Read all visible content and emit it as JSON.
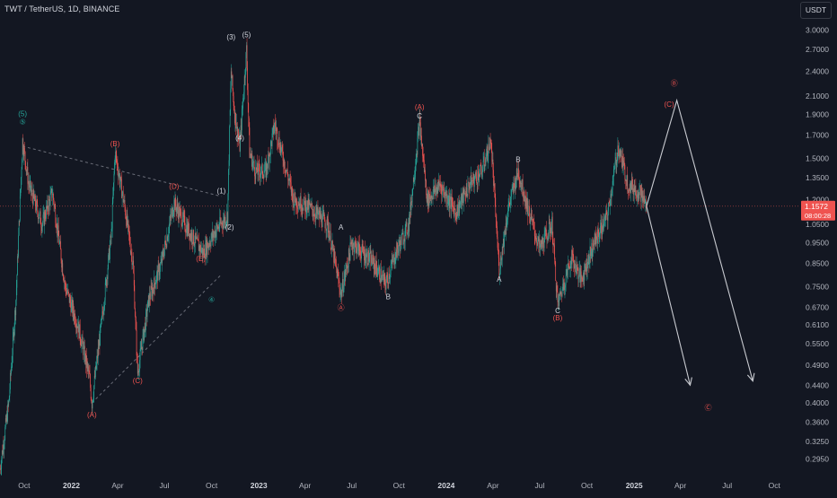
{
  "header": {
    "symbol": "TWT / TetherUS, 1D, BINANCE",
    "currency": "USDT"
  },
  "price_badge": {
    "price": "1.1572",
    "countdown": "08:00:28"
  },
  "colors": {
    "background": "#131722",
    "up": "#26a69a",
    "down": "#ef5350",
    "white_label": "#d1d4dc",
    "projection": "#c8cad0",
    "price_line": "#ef5350"
  },
  "chart_data": {
    "type": "candlestick",
    "y_scale": "log",
    "ylim": [
      0.27,
      3.2
    ],
    "xlim": [
      "2021-08-15",
      "2025-11-01"
    ],
    "y_ticks": [
      "3.0000",
      "2.7000",
      "2.4000",
      "2.1000",
      "1.9000",
      "1.7000",
      "1.5000",
      "1.3500",
      "1.2000",
      "1.0500",
      "0.9500",
      "0.8500",
      "0.7500",
      "0.6700",
      "0.6100",
      "0.5500",
      "0.4900",
      "0.4400",
      "0.4000",
      "0.3600",
      "0.3250",
      "0.2950"
    ],
    "x_ticks": [
      {
        "label": "Oct",
        "date": "2021-10-01",
        "bold": false
      },
      {
        "label": "2022",
        "date": "2022-01-01",
        "bold": true
      },
      {
        "label": "Apr",
        "date": "2022-04-01",
        "bold": false
      },
      {
        "label": "Jul",
        "date": "2022-07-01",
        "bold": false
      },
      {
        "label": "Oct",
        "date": "2022-10-01",
        "bold": false
      },
      {
        "label": "2023",
        "date": "2023-01-01",
        "bold": true
      },
      {
        "label": "Apr",
        "date": "2023-04-01",
        "bold": false
      },
      {
        "label": "Jul",
        "date": "2023-07-01",
        "bold": false
      },
      {
        "label": "Oct",
        "date": "2023-10-01",
        "bold": false
      },
      {
        "label": "2024",
        "date": "2024-01-01",
        "bold": true
      },
      {
        "label": "Apr",
        "date": "2024-04-01",
        "bold": false
      },
      {
        "label": "Jul",
        "date": "2024-07-01",
        "bold": false
      },
      {
        "label": "Oct",
        "date": "2024-10-01",
        "bold": false
      },
      {
        "label": "2025",
        "date": "2025-01-01",
        "bold": true
      },
      {
        "label": "Apr",
        "date": "2025-04-01",
        "bold": false
      },
      {
        "label": "Jul",
        "date": "2025-07-01",
        "bold": false
      },
      {
        "label": "Oct",
        "date": "2025-10-01",
        "bold": false
      }
    ],
    "last_price": 1.1572,
    "price_path": [
      [
        "2021-08-15",
        0.28
      ],
      [
        "2021-09-01",
        0.4
      ],
      [
        "2021-09-15",
        0.7
      ],
      [
        "2021-09-28",
        1.65
      ],
      [
        "2021-10-10",
        1.3
      ],
      [
        "2021-11-05",
        1.05
      ],
      [
        "2021-11-25",
        1.25
      ],
      [
        "2021-12-20",
        0.75
      ],
      [
        "2022-01-15",
        0.6
      ],
      [
        "2022-02-05",
        0.46
      ],
      [
        "2022-02-10",
        0.4
      ],
      [
        "2022-03-01",
        0.62
      ],
      [
        "2022-03-20",
        1.0
      ],
      [
        "2022-03-27",
        1.55
      ],
      [
        "2022-04-15",
        1.15
      ],
      [
        "2022-05-01",
        0.85
      ],
      [
        "2022-05-10",
        0.47
      ],
      [
        "2022-06-01",
        0.7
      ],
      [
        "2022-06-25",
        0.85
      ],
      [
        "2022-07-20",
        1.18
      ],
      [
        "2022-08-10",
        1.05
      ],
      [
        "2022-09-01",
        0.95
      ],
      [
        "2022-09-15",
        0.9
      ],
      [
        "2022-10-10",
        1.02
      ],
      [
        "2022-11-01",
        1.1
      ],
      [
        "2022-11-08",
        2.4
      ],
      [
        "2022-11-15",
        1.9
      ],
      [
        "2022-11-25",
        1.6
      ],
      [
        "2022-12-08",
        2.7
      ],
      [
        "2022-12-14",
        1.55
      ],
      [
        "2022-12-25",
        1.4
      ],
      [
        "2023-01-15",
        1.4
      ],
      [
        "2023-02-01",
        1.8
      ],
      [
        "2023-03-10",
        1.2
      ],
      [
        "2023-04-10",
        1.15
      ],
      [
        "2023-05-15",
        1.05
      ],
      [
        "2023-06-10",
        0.72
      ],
      [
        "2023-07-01",
        0.95
      ],
      [
        "2023-08-10",
        0.86
      ],
      [
        "2023-09-05",
        0.76
      ],
      [
        "2023-09-25",
        0.9
      ],
      [
        "2023-10-20",
        1.05
      ],
      [
        "2023-11-10",
        1.82
      ],
      [
        "2023-11-25",
        1.2
      ],
      [
        "2023-12-20",
        1.3
      ],
      [
        "2024-01-20",
        1.12
      ],
      [
        "2024-02-15",
        1.3
      ],
      [
        "2024-03-10",
        1.4
      ],
      [
        "2024-03-28",
        1.65
      ],
      [
        "2024-04-13",
        0.82
      ],
      [
        "2024-05-01",
        1.15
      ],
      [
        "2024-05-20",
        1.4
      ],
      [
        "2024-06-10",
        1.12
      ],
      [
        "2024-07-01",
        0.92
      ],
      [
        "2024-07-25",
        1.05
      ],
      [
        "2024-08-05",
        0.68
      ],
      [
        "2024-09-01",
        0.88
      ],
      [
        "2024-09-20",
        0.78
      ],
      [
        "2024-10-15",
        0.95
      ],
      [
        "2024-11-10",
        1.1
      ],
      [
        "2024-12-01",
        1.6
      ],
      [
        "2024-12-20",
        1.3
      ],
      [
        "2025-01-12",
        1.25
      ],
      [
        "2025-01-25",
        1.1572
      ]
    ],
    "wave_labels": [
      {
        "text": "(5)",
        "date": "2021-09-28",
        "price": 1.88,
        "color": "teal"
      },
      {
        "text": "⑤",
        "date": "2021-09-28",
        "price": 1.8,
        "color": "teal"
      },
      {
        "text": "(A)",
        "date": "2022-02-10",
        "price": 0.37,
        "color": "red"
      },
      {
        "text": "(B)",
        "date": "2022-03-27",
        "price": 1.6,
        "color": "red"
      },
      {
        "text": "(C)",
        "date": "2022-05-10",
        "price": 0.445,
        "color": "red"
      },
      {
        "text": "(D)",
        "date": "2022-07-20",
        "price": 1.27,
        "color": "red"
      },
      {
        "text": "(E)",
        "date": "2022-09-10",
        "price": 0.86,
        "color": "red"
      },
      {
        "text": "④",
        "date": "2022-10-01",
        "price": 0.69,
        "color": "teal"
      },
      {
        "text": "(1)",
        "date": "2022-10-20",
        "price": 1.24,
        "color": "white"
      },
      {
        "text": "(2)",
        "date": "2022-11-05",
        "price": 1.02,
        "color": "white"
      },
      {
        "text": "(3)",
        "date": "2022-11-08",
        "price": 2.85,
        "color": "white"
      },
      {
        "text": "(4)",
        "date": "2022-11-25",
        "price": 1.65,
        "color": "white"
      },
      {
        "text": "(5)",
        "date": "2022-12-08",
        "price": 2.88,
        "color": "white"
      },
      {
        "text": "A",
        "date": "2023-06-10",
        "price": 1.02,
        "color": "white"
      },
      {
        "text": "Ⓐ",
        "date": "2023-06-10",
        "price": 0.66,
        "color": "red"
      },
      {
        "text": "B",
        "date": "2023-09-10",
        "price": 0.7,
        "color": "white"
      },
      {
        "text": "(A)",
        "date": "2023-11-10",
        "price": 1.95,
        "color": "red"
      },
      {
        "text": "C",
        "date": "2023-11-10",
        "price": 1.86,
        "color": "white"
      },
      {
        "text": "B",
        "date": "2024-05-20",
        "price": 1.47,
        "color": "white"
      },
      {
        "text": "A",
        "date": "2024-04-13",
        "price": 0.77,
        "color": "white"
      },
      {
        "text": "C",
        "date": "2024-08-05",
        "price": 0.65,
        "color": "white"
      },
      {
        "text": "(B)",
        "date": "2024-08-05",
        "price": 0.625,
        "color": "red"
      },
      {
        "text": "Ⓑ",
        "date": "2025-03-20",
        "price": 2.22,
        "color": "red"
      },
      {
        "text": "(C)",
        "date": "2025-03-10",
        "price": 1.98,
        "color": "red"
      },
      {
        "text": "Ⓒ",
        "date": "2025-05-25",
        "price": 0.385,
        "color": "red"
      }
    ],
    "projection_paths": [
      [
        [
          "2025-01-25",
          1.1572
        ],
        [
          "2025-03-25",
          2.05
        ],
        [
          "2025-08-20",
          0.45
        ]
      ],
      [
        [
          "2025-01-25",
          1.1572
        ],
        [
          "2025-04-20",
          0.44
        ]
      ]
    ],
    "dashed_lines": [
      [
        [
          "2021-09-28",
          1.6
        ],
        [
          "2022-10-20",
          1.22
        ]
      ],
      [
        [
          "2022-02-10",
          0.4
        ],
        [
          "2022-10-20",
          0.8
        ]
      ]
    ]
  }
}
